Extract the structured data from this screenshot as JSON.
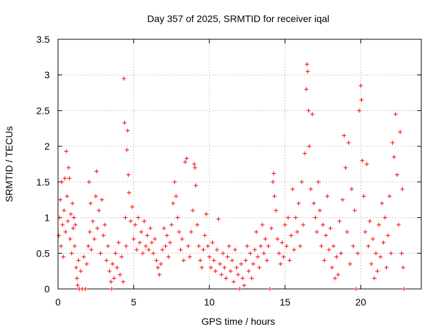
{
  "chart_data": {
    "type": "scatter",
    "title": "Day 357 of 2025, SRMTID for receiver iqal",
    "xlabel": "GPS time / hours",
    "ylabel": "SRMTID / TECUs",
    "xlim": [
      0,
      24
    ],
    "ylim": [
      0,
      3.5
    ],
    "xticks": [
      0,
      5,
      10,
      15,
      20
    ],
    "xtick_labels": [
      "0",
      "5",
      "10",
      "15",
      "20"
    ],
    "yticks": [
      0,
      0.5,
      1,
      1.5,
      2,
      2.5,
      3,
      3.5
    ],
    "ytick_labels": [
      "0",
      "0.5",
      "1",
      "1.5",
      "2",
      "2.5",
      "3",
      "3.5"
    ],
    "grid": true,
    "marker": "+",
    "color": "#ff0000",
    "series": [
      {
        "name": "SRMTID",
        "points": [
          [
            0.05,
            0.75
          ],
          [
            0.1,
            1.0
          ],
          [
            0.15,
            1.25
          ],
          [
            0.2,
            0.6
          ],
          [
            0.25,
            1.5
          ],
          [
            0.3,
            0.9
          ],
          [
            0.35,
            0.45
          ],
          [
            0.4,
            1.1
          ],
          [
            0.45,
            1.55
          ],
          [
            0.5,
            0.8
          ],
          [
            0.55,
            1.93
          ],
          [
            0.6,
            1.3
          ],
          [
            0.65,
            0.95
          ],
          [
            0.7,
            1.7
          ],
          [
            0.75,
            1.55
          ],
          [
            0.8,
            0.7
          ],
          [
            0.85,
            1.05
          ],
          [
            0.9,
            0.5
          ],
          [
            0.95,
            1.2
          ],
          [
            1.0,
            0.85
          ],
          [
            1.05,
            1.0
          ],
          [
            1.1,
            0.6
          ],
          [
            1.15,
            0.9
          ],
          [
            1.2,
            0.3
          ],
          [
            1.25,
            0.15
          ],
          [
            1.3,
            0.05
          ],
          [
            1.35,
            0.4
          ],
          [
            1.4,
            0.0
          ],
          [
            1.5,
            0.25
          ],
          [
            1.6,
            0.0
          ],
          [
            1.7,
            0.45
          ],
          [
            1.8,
            0.0
          ],
          [
            1.9,
            0.35
          ],
          [
            2.0,
            0.6
          ],
          [
            2.05,
            1.5
          ],
          [
            2.1,
            0.8
          ],
          [
            2.15,
            1.2
          ],
          [
            2.2,
            0.55
          ],
          [
            2.3,
            0.95
          ],
          [
            2.4,
            0.7
          ],
          [
            2.5,
            1.3
          ],
          [
            2.55,
            1.65
          ],
          [
            2.6,
            0.85
          ],
          [
            2.7,
            1.1
          ],
          [
            2.8,
            0.5
          ],
          [
            2.9,
            1.25
          ],
          [
            3.0,
            0.75
          ],
          [
            3.1,
            0.9
          ],
          [
            3.2,
            0.4
          ],
          [
            3.3,
            0.6
          ],
          [
            3.4,
            0.25
          ],
          [
            3.5,
            0.1
          ],
          [
            3.55,
            0.0
          ],
          [
            3.6,
            0.35
          ],
          [
            3.7,
            0.15
          ],
          [
            3.8,
            0.5
          ],
          [
            3.9,
            0.3
          ],
          [
            4.0,
            0.65
          ],
          [
            4.1,
            0.2
          ],
          [
            4.2,
            0.45
          ],
          [
            4.3,
            0.1
          ],
          [
            4.35,
            2.95
          ],
          [
            4.4,
            2.33
          ],
          [
            4.45,
            1.0
          ],
          [
            4.5,
            0.6
          ],
          [
            4.55,
            1.95
          ],
          [
            4.6,
            2.22
          ],
          [
            4.65,
            1.6
          ],
          [
            4.7,
            1.35
          ],
          [
            4.8,
            0.95
          ],
          [
            4.9,
            1.15
          ],
          [
            5.0,
            0.7
          ],
          [
            5.1,
            0.9
          ],
          [
            5.2,
            0.55
          ],
          [
            5.3,
            1.0
          ],
          [
            5.4,
            0.65
          ],
          [
            5.5,
            0.8
          ],
          [
            5.6,
            0.5
          ],
          [
            5.7,
            0.95
          ],
          [
            5.8,
            0.6
          ],
          [
            5.9,
            0.75
          ],
          [
            6.0,
            0.55
          ],
          [
            6.1,
            0.85
          ],
          [
            6.2,
            0.65
          ],
          [
            6.3,
            0.5
          ],
          [
            6.4,
            0.7
          ],
          [
            6.5,
            0.4
          ],
          [
            6.6,
            0.3
          ],
          [
            6.7,
            0.2
          ],
          [
            6.8,
            0.35
          ],
          [
            6.9,
            0.55
          ],
          [
            7.0,
            0.85
          ],
          [
            7.1,
            0.6
          ],
          [
            7.2,
            0.75
          ],
          [
            7.3,
            0.45
          ],
          [
            7.4,
            0.65
          ],
          [
            7.5,
            0.9
          ],
          [
            7.6,
            1.2
          ],
          [
            7.7,
            1.5
          ],
          [
            7.8,
            1.3
          ],
          [
            7.9,
            1.0
          ],
          [
            8.0,
            0.8
          ],
          [
            8.1,
            0.55
          ],
          [
            8.2,
            0.7
          ],
          [
            8.3,
            0.4
          ],
          [
            8.4,
            1.78
          ],
          [
            8.5,
            1.83
          ],
          [
            8.6,
            0.6
          ],
          [
            8.7,
            0.45
          ],
          [
            8.8,
            0.8
          ],
          [
            8.9,
            1.1
          ],
          [
            9.0,
            1.75
          ],
          [
            9.05,
            1.7
          ],
          [
            9.1,
            1.45
          ],
          [
            9.2,
            0.9
          ],
          [
            9.3,
            0.6
          ],
          [
            9.4,
            0.4
          ],
          [
            9.5,
            0.3
          ],
          [
            9.6,
            0.55
          ],
          [
            9.7,
            0.75
          ],
          [
            9.8,
            1.05
          ],
          [
            9.9,
            0.6
          ],
          [
            10.0,
            0.45
          ],
          [
            10.1,
            0.3
          ],
          [
            10.2,
            0.65
          ],
          [
            10.3,
            0.4
          ],
          [
            10.4,
            0.25
          ],
          [
            10.5,
            0.55
          ],
          [
            10.6,
            0.98
          ],
          [
            10.7,
            0.35
          ],
          [
            10.8,
            0.2
          ],
          [
            10.9,
            0.5
          ],
          [
            11.0,
            0.3
          ],
          [
            11.1,
            0.15
          ],
          [
            11.2,
            0.45
          ],
          [
            11.3,
            0.6
          ],
          [
            11.4,
            0.25
          ],
          [
            11.5,
            0.4
          ],
          [
            11.6,
            0.1
          ],
          [
            11.7,
            0.55
          ],
          [
            11.8,
            0.3
          ],
          [
            11.9,
            0.2
          ],
          [
            12.0,
            0.0
          ],
          [
            12.1,
            0.35
          ],
          [
            12.2,
            0.15
          ],
          [
            12.3,
            0.05
          ],
          [
            12.4,
            0.4
          ],
          [
            12.5,
            0.6
          ],
          [
            12.6,
            0.25
          ],
          [
            12.7,
            0.5
          ],
          [
            12.8,
            0.15
          ],
          [
            12.9,
            0.35
          ],
          [
            13.0,
            0.55
          ],
          [
            13.1,
            0.8
          ],
          [
            13.2,
            0.45
          ],
          [
            13.3,
            0.3
          ],
          [
            13.4,
            0.6
          ],
          [
            13.5,
            0.9
          ],
          [
            13.6,
            0.5
          ],
          [
            13.7,
            0.7
          ],
          [
            13.8,
            0.4
          ],
          [
            13.9,
            0.6
          ],
          [
            14.0,
            0.0
          ],
          [
            14.1,
            0.85
          ],
          [
            14.2,
            1.5
          ],
          [
            14.25,
            1.62
          ],
          [
            14.3,
            1.3
          ],
          [
            14.4,
            1.1
          ],
          [
            14.5,
            0.7
          ],
          [
            14.6,
            0.5
          ],
          [
            14.7,
            0.35
          ],
          [
            14.8,
            0.65
          ],
          [
            14.9,
            0.45
          ],
          [
            15.0,
            0.9
          ],
          [
            15.1,
            0.6
          ],
          [
            15.2,
            1.0
          ],
          [
            15.3,
            0.4
          ],
          [
            15.4,
            0.75
          ],
          [
            15.5,
            1.4
          ],
          [
            15.6,
            0.55
          ],
          [
            15.7,
            1.0
          ],
          [
            15.8,
            0.8
          ],
          [
            15.9,
            1.2
          ],
          [
            16.0,
            0.6
          ],
          [
            16.1,
            1.5
          ],
          [
            16.2,
            0.9
          ],
          [
            16.3,
            1.9
          ],
          [
            16.4,
            2.8
          ],
          [
            16.45,
            3.15
          ],
          [
            16.5,
            3.05
          ],
          [
            16.55,
            2.5
          ],
          [
            16.6,
            2.0
          ],
          [
            16.7,
            1.4
          ],
          [
            16.8,
            2.45
          ],
          [
            16.9,
            1.2
          ],
          [
            17.0,
            1.0
          ],
          [
            17.1,
            0.8
          ],
          [
            17.2,
            1.5
          ],
          [
            17.3,
            1.1
          ],
          [
            17.4,
            0.6
          ],
          [
            17.5,
            0.9
          ],
          [
            17.6,
            0.4
          ],
          [
            17.7,
            0.75
          ],
          [
            17.8,
            1.3
          ],
          [
            17.9,
            0.55
          ],
          [
            18.0,
            0.85
          ],
          [
            18.1,
            0.3
          ],
          [
            18.2,
            0.6
          ],
          [
            18.3,
            0.15
          ],
          [
            18.4,
            0.45
          ],
          [
            18.5,
            0.2
          ],
          [
            18.6,
            0.95
          ],
          [
            18.7,
            0.5
          ],
          [
            18.8,
            1.25
          ],
          [
            18.9,
            2.15
          ],
          [
            19.0,
            1.7
          ],
          [
            19.1,
            0.8
          ],
          [
            19.2,
            2.05
          ],
          [
            19.3,
            0.35
          ],
          [
            19.4,
            1.4
          ],
          [
            19.5,
            0.6
          ],
          [
            19.6,
            1.1
          ],
          [
            19.7,
            0.0
          ],
          [
            19.8,
            0.5
          ],
          [
            19.9,
            2.5
          ],
          [
            20.0,
            2.85
          ],
          [
            20.05,
            2.65
          ],
          [
            20.1,
            1.8
          ],
          [
            20.2,
            1.3
          ],
          [
            20.3,
            0.8
          ],
          [
            20.4,
            1.75
          ],
          [
            20.5,
            0.6
          ],
          [
            20.6,
            0.95
          ],
          [
            20.7,
            0.35
          ],
          [
            20.8,
            0.7
          ],
          [
            20.9,
            0.15
          ],
          [
            21.0,
            0.5
          ],
          [
            21.1,
            0.25
          ],
          [
            21.2,
            0.9
          ],
          [
            21.3,
            0.45
          ],
          [
            21.4,
            1.2
          ],
          [
            21.5,
            0.65
          ],
          [
            21.6,
            1.0
          ],
          [
            21.7,
            0.3
          ],
          [
            21.8,
            0.75
          ],
          [
            21.9,
            1.3
          ],
          [
            22.0,
            0.5
          ],
          [
            22.1,
            2.05
          ],
          [
            22.2,
            1.85
          ],
          [
            22.3,
            2.45
          ],
          [
            22.4,
            1.6
          ],
          [
            22.5,
            0.9
          ],
          [
            22.6,
            2.2
          ],
          [
            22.7,
            0.5
          ],
          [
            22.75,
            1.4
          ],
          [
            22.8,
            0.3
          ],
          [
            22.85,
            0.0
          ]
        ]
      }
    ]
  }
}
